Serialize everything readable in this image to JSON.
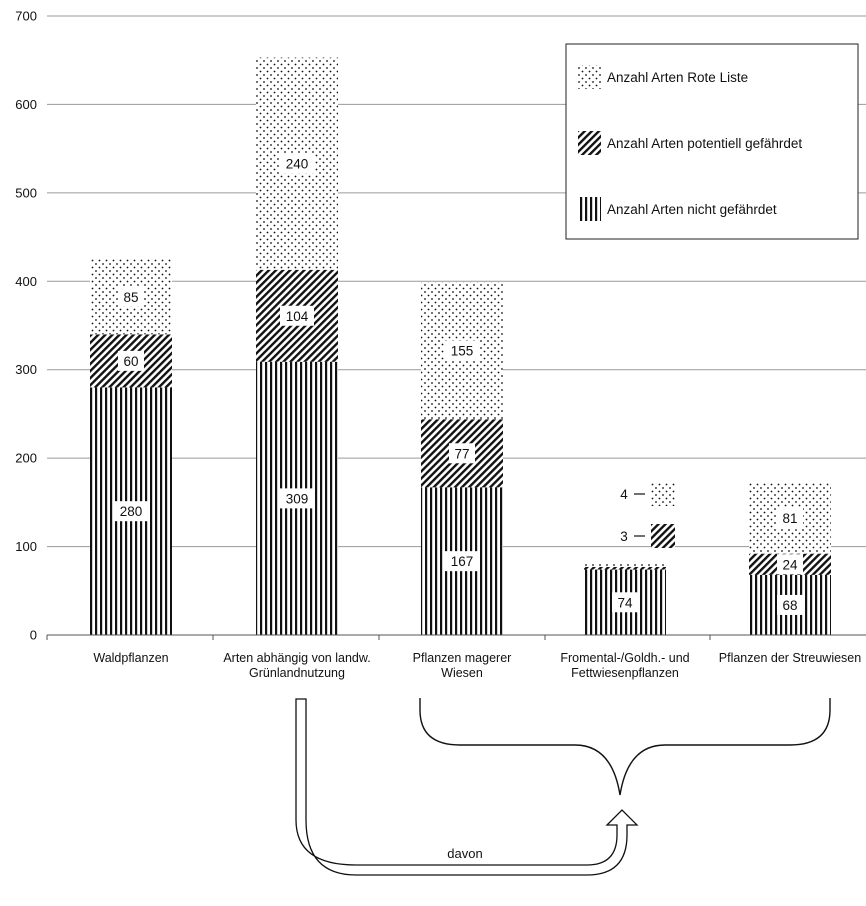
{
  "chart_data": {
    "type": "bar",
    "stacked": true,
    "categories": [
      [
        "Waldpflanzen"
      ],
      [
        "Arten abhängig von landw.",
        "Grünlandnutzung"
      ],
      [
        "Pflanzen magerer",
        "Wiesen"
      ],
      [
        "Fromental-/Goldh.- und",
        "Fettwiesenpflanzen"
      ],
      [
        "Pflanzen der Streuwiesen"
      ]
    ],
    "series": [
      {
        "name": "Anzahl Arten  nicht gefährdet",
        "pattern": "vertical-lines",
        "values": [
          280,
          309,
          167,
          74,
          68
        ]
      },
      {
        "name": "Anzahl Arten potentiell gefährdet",
        "pattern": "diagonal-hatch",
        "values": [
          60,
          104,
          77,
          3,
          24
        ]
      },
      {
        "name": "Anzahl Arten Rote Liste",
        "pattern": "dots",
        "values": [
          85,
          240,
          155,
          4,
          81
        ]
      }
    ],
    "outside_labels": [
      {
        "category_index": 3,
        "series_index": 2,
        "text": "4"
      },
      {
        "category_index": 3,
        "series_index": 1,
        "text": "3"
      }
    ],
    "y_ticks": [
      0,
      100,
      200,
      300,
      400,
      500,
      600,
      700
    ],
    "ylim": [
      0,
      700
    ],
    "grid": true,
    "legend_position": "top-right",
    "legend_order": [
      2,
      1,
      0
    ]
  },
  "annotation": {
    "arrow_label": "davon",
    "brace_spans": "Pflanzen magerer Wiesen to Pflanzen der Streuwiesen"
  },
  "colors": {
    "ink": "#111111",
    "grid": "#9a9a9a",
    "background": "#ffffff"
  }
}
